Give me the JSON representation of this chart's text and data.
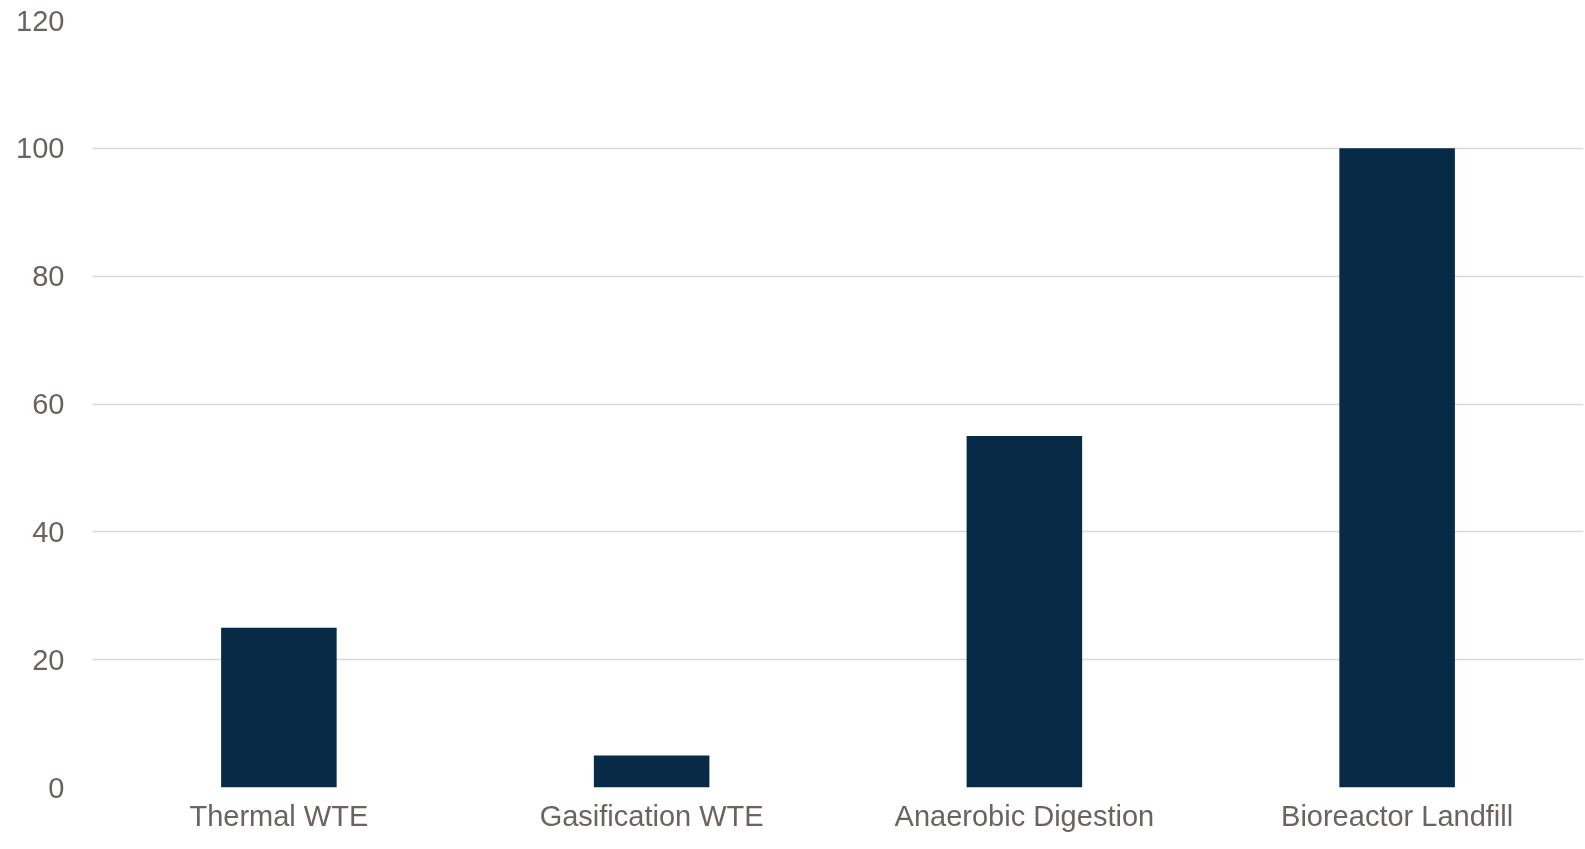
{
  "chart_data": {
    "type": "bar",
    "categories": [
      "Thermal WTE",
      "Gasification WTE",
      "Anaerobic Digestion",
      "Bioreactor Landfill"
    ],
    "values": [
      25,
      5,
      55,
      100
    ],
    "color": "#072a47",
    "ylim": [
      0,
      120
    ],
    "yticks": [
      0,
      20,
      40,
      60,
      80,
      100,
      120
    ],
    "grid": "y"
  }
}
